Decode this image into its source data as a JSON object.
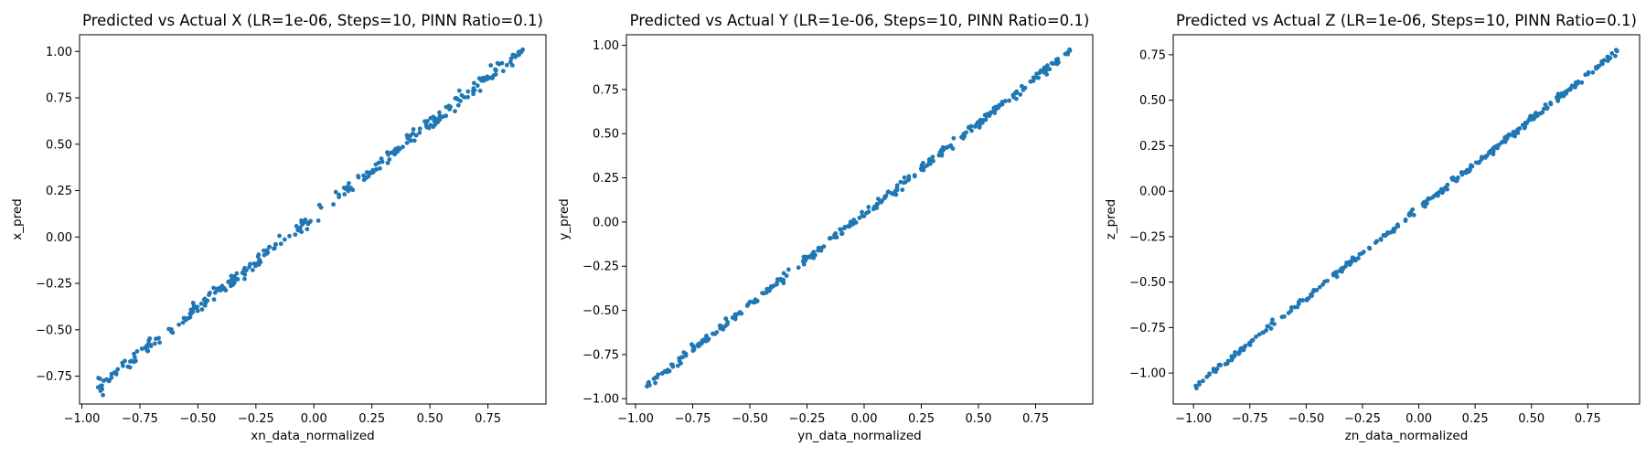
{
  "chart_data": [
    {
      "type": "scatter",
      "title": "Predicted vs Actual X (LR=1e-06, Steps=10, PINN Ratio=0.1)",
      "xlabel": "xn_data_normalized",
      "ylabel": "x_pred",
      "xlim": [
        -1.01,
        1.0
      ],
      "ylim": [
        -0.9,
        1.09
      ],
      "xticks": [
        -1.0,
        -0.75,
        -0.5,
        -0.25,
        0.0,
        0.25,
        0.5,
        0.75
      ],
      "xtick_labels": [
        "−1.00",
        "−0.75",
        "−0.50",
        "−0.25",
        "0.00",
        "0.25",
        "0.50",
        "0.75"
      ],
      "yticks": [
        -0.75,
        -0.5,
        -0.25,
        0.0,
        0.25,
        0.5,
        0.75,
        1.0
      ],
      "ytick_labels": [
        "−0.75",
        "−0.50",
        "−0.25",
        "0.00",
        "0.25",
        "0.50",
        "0.75",
        "1.00"
      ],
      "trend": {
        "x_start": -0.93,
        "x_end": 0.9,
        "y_start": -0.81,
        "y_end": 1.01,
        "noise": 0.03,
        "n_points": 300
      },
      "color": "#1f77b4",
      "grid": false
    },
    {
      "type": "scatter",
      "title": "Predicted vs Actual Y (LR=1e-06, Steps=10, PINN Ratio=0.1)",
      "xlabel": "yn_data_normalized",
      "ylabel": "y_pred",
      "xlim": [
        -1.04,
        1.0
      ],
      "ylim": [
        -1.03,
        1.06
      ],
      "xticks": [
        -1.0,
        -0.75,
        -0.5,
        -0.25,
        0.0,
        0.25,
        0.5,
        0.75
      ],
      "xtick_labels": [
        "−1.00",
        "−0.75",
        "−0.50",
        "−0.25",
        "0.00",
        "0.25",
        "0.50",
        "0.75"
      ],
      "yticks": [
        -1.0,
        -0.75,
        -0.5,
        -0.25,
        0.0,
        0.25,
        0.5,
        0.75,
        1.0
      ],
      "ytick_labels": [
        "−1.00",
        "−0.75",
        "−0.50",
        "−0.25",
        "0.00",
        "0.25",
        "0.50",
        "0.75",
        "1.00"
      ],
      "trend": {
        "x_start": -0.95,
        "x_end": 0.9,
        "y_start": -0.93,
        "y_end": 0.97,
        "noise": 0.02,
        "n_points": 300
      },
      "color": "#1f77b4",
      "grid": false
    },
    {
      "type": "scatter",
      "title": "Predicted vs Actual Z (LR=1e-06, Steps=10, PINN Ratio=0.1)",
      "xlabel": "zn_data_normalized",
      "ylabel": "z_pred",
      "xlim": [
        -1.09,
        0.98
      ],
      "ylim": [
        -1.17,
        0.86
      ],
      "xticks": [
        -1.0,
        -0.75,
        -0.5,
        -0.25,
        0.0,
        0.25,
        0.5,
        0.75
      ],
      "xtick_labels": [
        "−1.00",
        "−0.75",
        "−0.50",
        "−0.25",
        "0.00",
        "0.25",
        "0.50",
        "0.75"
      ],
      "yticks": [
        -1.0,
        -0.75,
        -0.5,
        -0.25,
        0.0,
        0.25,
        0.5,
        0.75
      ],
      "ytick_labels": [
        "−1.00",
        "−0.75",
        "−0.50",
        "−0.25",
        "0.00",
        "0.25",
        "0.50",
        "0.75"
      ],
      "trend": {
        "x_start": -0.99,
        "x_end": 0.88,
        "y_start": -1.07,
        "y_end": 0.77,
        "noise": 0.015,
        "n_points": 300
      },
      "color": "#1f77b4",
      "grid": false
    }
  ]
}
